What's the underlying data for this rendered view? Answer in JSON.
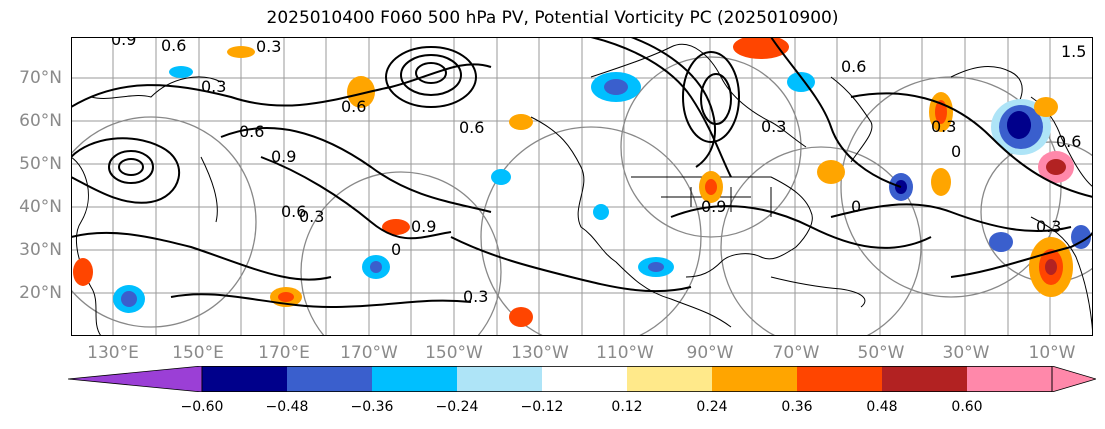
{
  "title": "2025010400 F060 500 hPa PV, Potential Vorticity PC (2025010900)",
  "lat_labels": [
    "70°N",
    "60°N",
    "50°N",
    "40°N",
    "30°N",
    "20°N"
  ],
  "lon_labels": [
    "130°E",
    "150°E",
    "170°E",
    "170°W",
    "150°W",
    "130°W",
    "110°W",
    "90°W",
    "70°W",
    "50°W",
    "30°W",
    "10°W"
  ],
  "contour_labels": [
    "0.9",
    "0.6",
    "0.3",
    "0.3",
    "0.6",
    "0.6",
    "0.3",
    "0.9",
    "0.6",
    "0.9",
    "0",
    "0.3",
    "0.6",
    "0.9",
    "1.5",
    "0",
    "0.3",
    "0.6",
    "0.3",
    "0",
    "0.6",
    "0.3"
  ],
  "colorbar": {
    "ticks": [
      "−0.60",
      "−0.48",
      "−0.36",
      "−0.24",
      "−0.12",
      "0.12",
      "0.24",
      "0.36",
      "0.48",
      "0.60"
    ],
    "colors": [
      "#9b3fd6",
      "#00008b",
      "#3a5fcd",
      "#00bfff",
      "#aee4f7",
      "#ffffff",
      "#ffe98a",
      "#ffa500",
      "#ff4500",
      "#b22222",
      "#ff88aa",
      "#ff88aa"
    ]
  },
  "colors": {
    "pv_contour": "#000000",
    "grid": "#999999",
    "coast": "#000000"
  }
}
